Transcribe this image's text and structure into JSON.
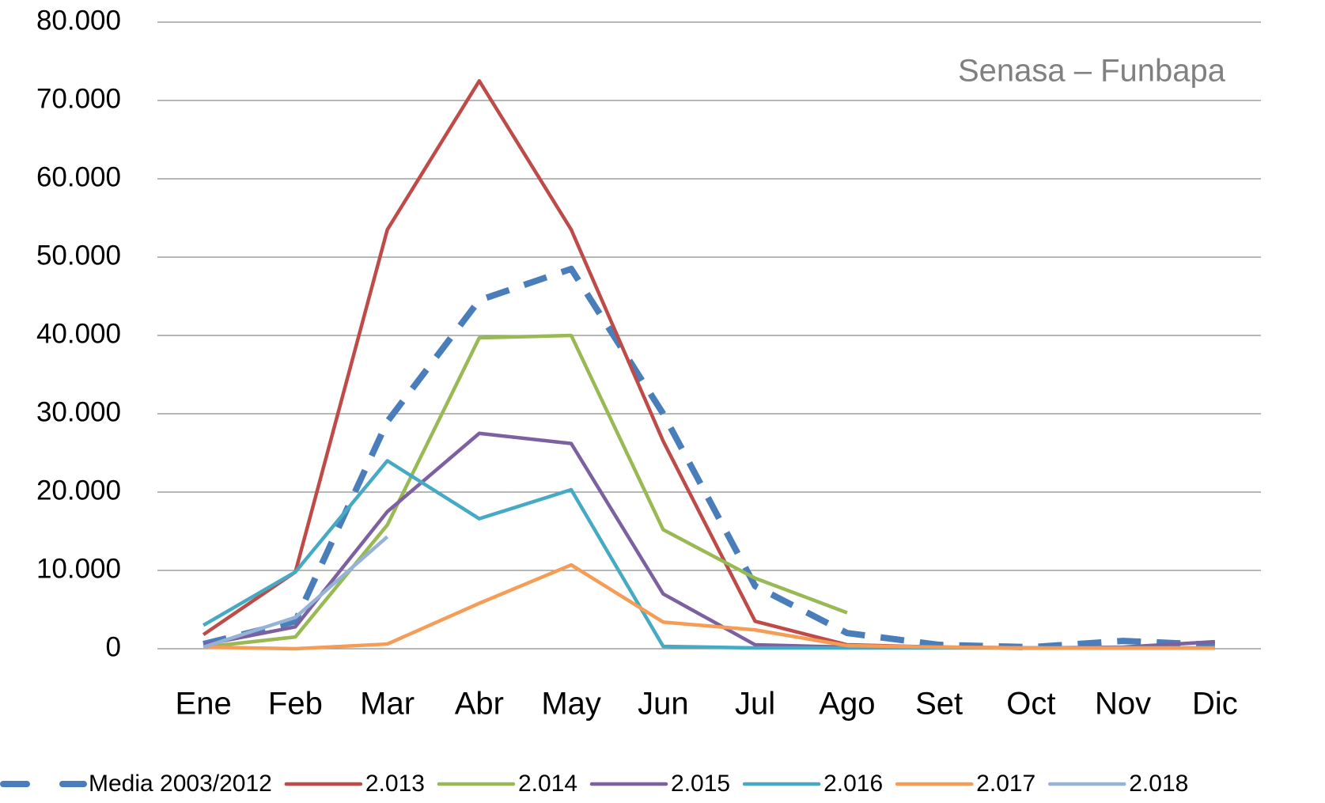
{
  "chart_data": {
    "type": "line",
    "annotation": "Senasa – Funbapa",
    "categories": [
      "Ene",
      "Feb",
      "Mar",
      "Abr",
      "May",
      "Jun",
      "Jul",
      "Ago",
      "Set",
      "Oct",
      "Nov",
      "Dic"
    ],
    "series": [
      {
        "name": "Media 2003/2012",
        "color": "#4a7ebb",
        "dashed": true,
        "values": [
          600,
          3500,
          29000,
          44500,
          48500,
          30000,
          8000,
          2000,
          500,
          200,
          1000,
          500
        ]
      },
      {
        "name": "2.013",
        "color": "#be4b48",
        "values": [
          1800,
          9800,
          53500,
          72500,
          53500,
          26500,
          3500,
          500,
          200,
          100,
          100,
          100
        ]
      },
      {
        "name": "2.014",
        "color": "#98b954",
        "values": [
          200,
          1500,
          15800,
          39700,
          40000,
          15200,
          9000,
          4600,
          null,
          null,
          null,
          null
        ]
      },
      {
        "name": "2.015",
        "color": "#7d60a0",
        "values": [
          500,
          2800,
          17500,
          27500,
          26200,
          7000,
          500,
          200,
          200,
          100,
          200,
          900
        ]
      },
      {
        "name": "2.016",
        "color": "#46aac5",
        "values": [
          3000,
          9800,
          24000,
          16600,
          20300,
          300,
          100,
          100,
          100,
          100,
          100,
          100
        ]
      },
      {
        "name": "2.017",
        "color": "#f59d56",
        "values": [
          200,
          0,
          600,
          5800,
          10700,
          3400,
          2400,
          400,
          200,
          100,
          100,
          100
        ]
      },
      {
        "name": "2.018",
        "color": "#95b3d7",
        "values": [
          200,
          4000,
          14300,
          null,
          null,
          null,
          null,
          null,
          null,
          null,
          null,
          null
        ]
      }
    ],
    "ylim": [
      0,
      80000
    ],
    "yticks": [
      0,
      {
        "value": 10000,
        "label": "10.000"
      },
      {
        "value": 20000,
        "label": "20.000"
      },
      {
        "value": 30000,
        "label": "30.000"
      },
      {
        "value": 40000,
        "label": "40.000"
      },
      {
        "value": 50000,
        "label": "50.000"
      },
      {
        "value": 60000,
        "label": "60.000"
      },
      {
        "value": 70000,
        "label": "70.000"
      },
      {
        "value": 80000,
        "label": "80.000"
      }
    ],
    "grid": true,
    "legend": "bottom"
  }
}
